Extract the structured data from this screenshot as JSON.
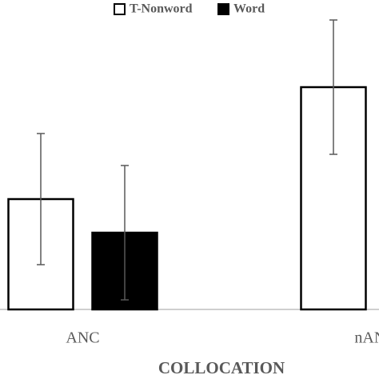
{
  "chart_data": {
    "type": "bar",
    "x_label": "COLLOCATION",
    "categories": [
      "ANC",
      "nANC"
    ],
    "series": [
      {
        "name": "T-Nonword",
        "color": "#ffffff",
        "values": [
          138,
          278
        ],
        "errors": [
          82,
          84
        ]
      },
      {
        "name": "Word",
        "color": "#000000",
        "values": [
          96,
          null
        ],
        "errors": [
          84,
          null
        ]
      }
    ],
    "ylim": [
      0,
      387
    ],
    "legend": "top"
  }
}
